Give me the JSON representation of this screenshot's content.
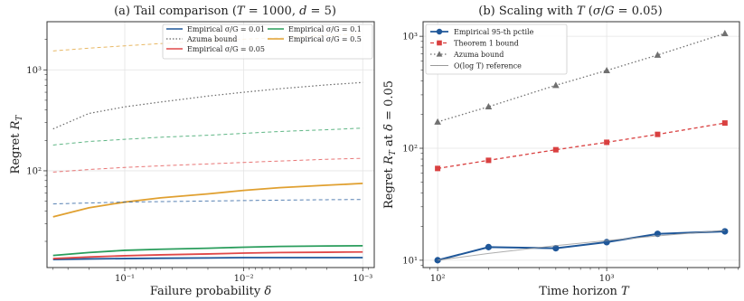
{
  "chart_data": [
    {
      "type": "line",
      "title": "(a) Tail comparison (T = 1000, d = 5)",
      "xlabel": "Failure probability δ",
      "ylabel": "Regret R_T",
      "x_scale": "log-reversed",
      "y_scale": "log",
      "xlim": [
        0.45,
        0.0008
      ],
      "ylim": [
        11,
        3000
      ],
      "x_ticks": [
        {
          "v": 0.1,
          "label": "10⁻¹"
        },
        {
          "v": 0.01,
          "label": "10⁻²"
        },
        {
          "v": 0.001,
          "label": "10⁻³"
        }
      ],
      "y_ticks": [
        {
          "v": 100,
          "label": "10²"
        },
        {
          "v": 1000,
          "label": "10³"
        }
      ],
      "grid": true,
      "legend_position": "top-right",
      "x": [
        0.4,
        0.2,
        0.1,
        0.05,
        0.02,
        0.01,
        0.005,
        0.002,
        0.001
      ],
      "series": [
        {
          "name": "Empirical σ/G = 0.01",
          "kind": "empirical",
          "color": "#1f5799",
          "values": [
            13.2,
            13.4,
            13.5,
            13.6,
            13.7,
            13.8,
            13.8,
            13.8,
            13.8
          ]
        },
        {
          "name": "Empirical σ/G = 0.1",
          "kind": "empirical",
          "color": "#2a9d5c",
          "values": [
            14.5,
            15.5,
            16.3,
            16.7,
            17.1,
            17.5,
            17.8,
            18.0,
            18.1
          ]
        },
        {
          "name": "Empirical σ/G = 0.05",
          "kind": "empirical",
          "color": "#e04848",
          "values": [
            13.5,
            14.0,
            14.4,
            14.7,
            15.0,
            15.3,
            15.5,
            15.6,
            15.7
          ]
        },
        {
          "name": "Empirical σ/G = 0.5",
          "kind": "empirical",
          "color": "#e0a030",
          "values": [
            35,
            43,
            49,
            54,
            59,
            64,
            68,
            72,
            75
          ]
        },
        {
          "name": "Azuma bound",
          "kind": "azuma",
          "color": "#666666",
          "values": [
            260,
            370,
            430,
            480,
            550,
            600,
            650,
            710,
            750
          ]
        },
        {
          "name": "",
          "kind": "bound",
          "color": "#1f5799",
          "values": [
            47,
            48,
            49,
            49.5,
            50.2,
            50.7,
            51.2,
            51.7,
            52
          ]
        },
        {
          "name": "",
          "kind": "bound",
          "color": "#2a9d5c",
          "values": [
            180,
            195,
            205,
            215,
            225,
            235,
            245,
            255,
            265
          ]
        },
        {
          "name": "",
          "kind": "bound",
          "color": "#e04848",
          "values": [
            97,
            103,
            108,
            112,
            117,
            121,
            125,
            130,
            133
          ]
        },
        {
          "name": "",
          "kind": "bound",
          "color": "#e0a030",
          "values": [
            1540,
            1640,
            1730,
            1820,
            1930,
            2010,
            2090,
            2190,
            2260
          ]
        }
      ],
      "legend": [
        {
          "label": "Empirical σ/G = 0.01",
          "color": "#1f5799",
          "style": "solid"
        },
        {
          "label": "Empirical σ/G = 0.1",
          "color": "#2a9d5c",
          "style": "solid"
        },
        {
          "label": "Azuma bound",
          "color": "#666666",
          "style": "dotted"
        },
        {
          "label": "Empirical σ/G = 0.5",
          "color": "#e0a030",
          "style": "solid"
        },
        {
          "label": "Empirical σ/G = 0.05",
          "color": "#e04848",
          "style": "solid"
        }
      ]
    },
    {
      "type": "line",
      "title": "(b) Scaling with T (σ/G = 0.05)",
      "xlabel": "Time horizon T",
      "ylabel": "Regret R_T at δ = 0.05",
      "x_scale": "log",
      "y_scale": "log",
      "xlim": [
        82,
        6100
      ],
      "ylim": [
        8.6,
        1350
      ],
      "x_ticks": [
        {
          "v": 100,
          "label": "10²"
        },
        {
          "v": 1000,
          "label": "10³"
        }
      ],
      "y_ticks": [
        {
          "v": 10,
          "label": "10¹"
        },
        {
          "v": 100,
          "label": "10²"
        },
        {
          "v": 1000,
          "label": "10³"
        }
      ],
      "grid": true,
      "legend_position": "top-left",
      "x": [
        100,
        200,
        500,
        1000,
        2000,
        5000
      ],
      "series": [
        {
          "name": "Empirical 95-th pctile",
          "color": "#1f5799",
          "style": "solid",
          "marker": "circle",
          "values": [
            10,
            13.1,
            12.8,
            14.5,
            17.2,
            18.1
          ]
        },
        {
          "name": "Theorem 1 bound",
          "color": "#d94040",
          "style": "dashed",
          "marker": "square",
          "values": [
            66,
            78,
            97,
            113,
            133,
            168
          ]
        },
        {
          "name": "Azuma bound",
          "color": "#707070",
          "style": "dotted",
          "marker": "triangle",
          "values": [
            172,
            235,
            365,
            495,
            680,
            1060
          ]
        },
        {
          "name": "O(log T) reference",
          "color": "#999999",
          "style": "solid",
          "marker": "none",
          "values": [
            10,
            11.5,
            13.5,
            15,
            16.5,
            18.5
          ]
        }
      ]
    }
  ]
}
